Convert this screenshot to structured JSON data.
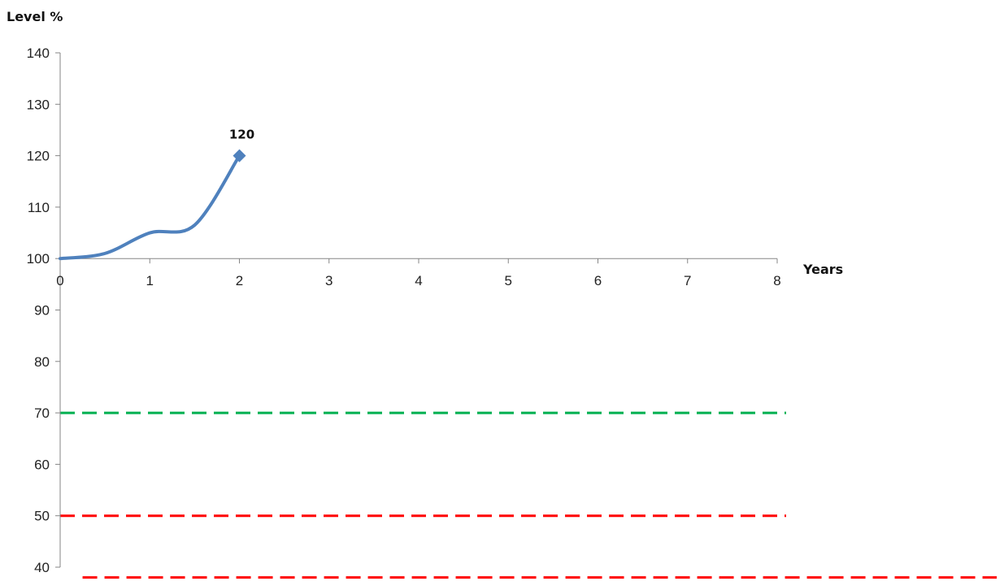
{
  "chart_data": {
    "type": "line",
    "title": "",
    "xlabel": "Years",
    "ylabel": "Level %",
    "xlim": [
      0,
      8
    ],
    "ylim": [
      40,
      140
    ],
    "x_ticks": [
      0,
      1,
      2,
      3,
      4,
      5,
      6,
      7,
      8
    ],
    "y_ticks": [
      40,
      50,
      60,
      70,
      80,
      90,
      100,
      110,
      120,
      130,
      140
    ],
    "x_axis_crosses_y_at": 100,
    "grid": false,
    "legend": "none",
    "series": [
      {
        "color": "#4f81bd",
        "smooth": true,
        "marker": "diamond",
        "marker_on_last_point_only": true,
        "points": [
          {
            "x": 0,
            "y": 100
          },
          {
            "x": 0.5,
            "y": 101
          },
          {
            "x": 1,
            "y": 105
          },
          {
            "x": 1.5,
            "y": 106.5
          },
          {
            "x": 2,
            "y": 120
          }
        ],
        "data_labels": [
          {
            "x": 2,
            "y": 120,
            "text": "120"
          }
        ]
      }
    ],
    "reference_lines": [
      {
        "y": 70,
        "color": "#00b050",
        "style": "dashed",
        "x_from": 0,
        "x_to": 8.1
      },
      {
        "y": 50,
        "color": "#ff0000",
        "style": "dashed",
        "x_from": 0,
        "x_to": 8.1
      },
      {
        "y": 38,
        "color": "#ff0000",
        "style": "dashed",
        "x_from": 0.25,
        "x_to": 10.45
      }
    ]
  }
}
